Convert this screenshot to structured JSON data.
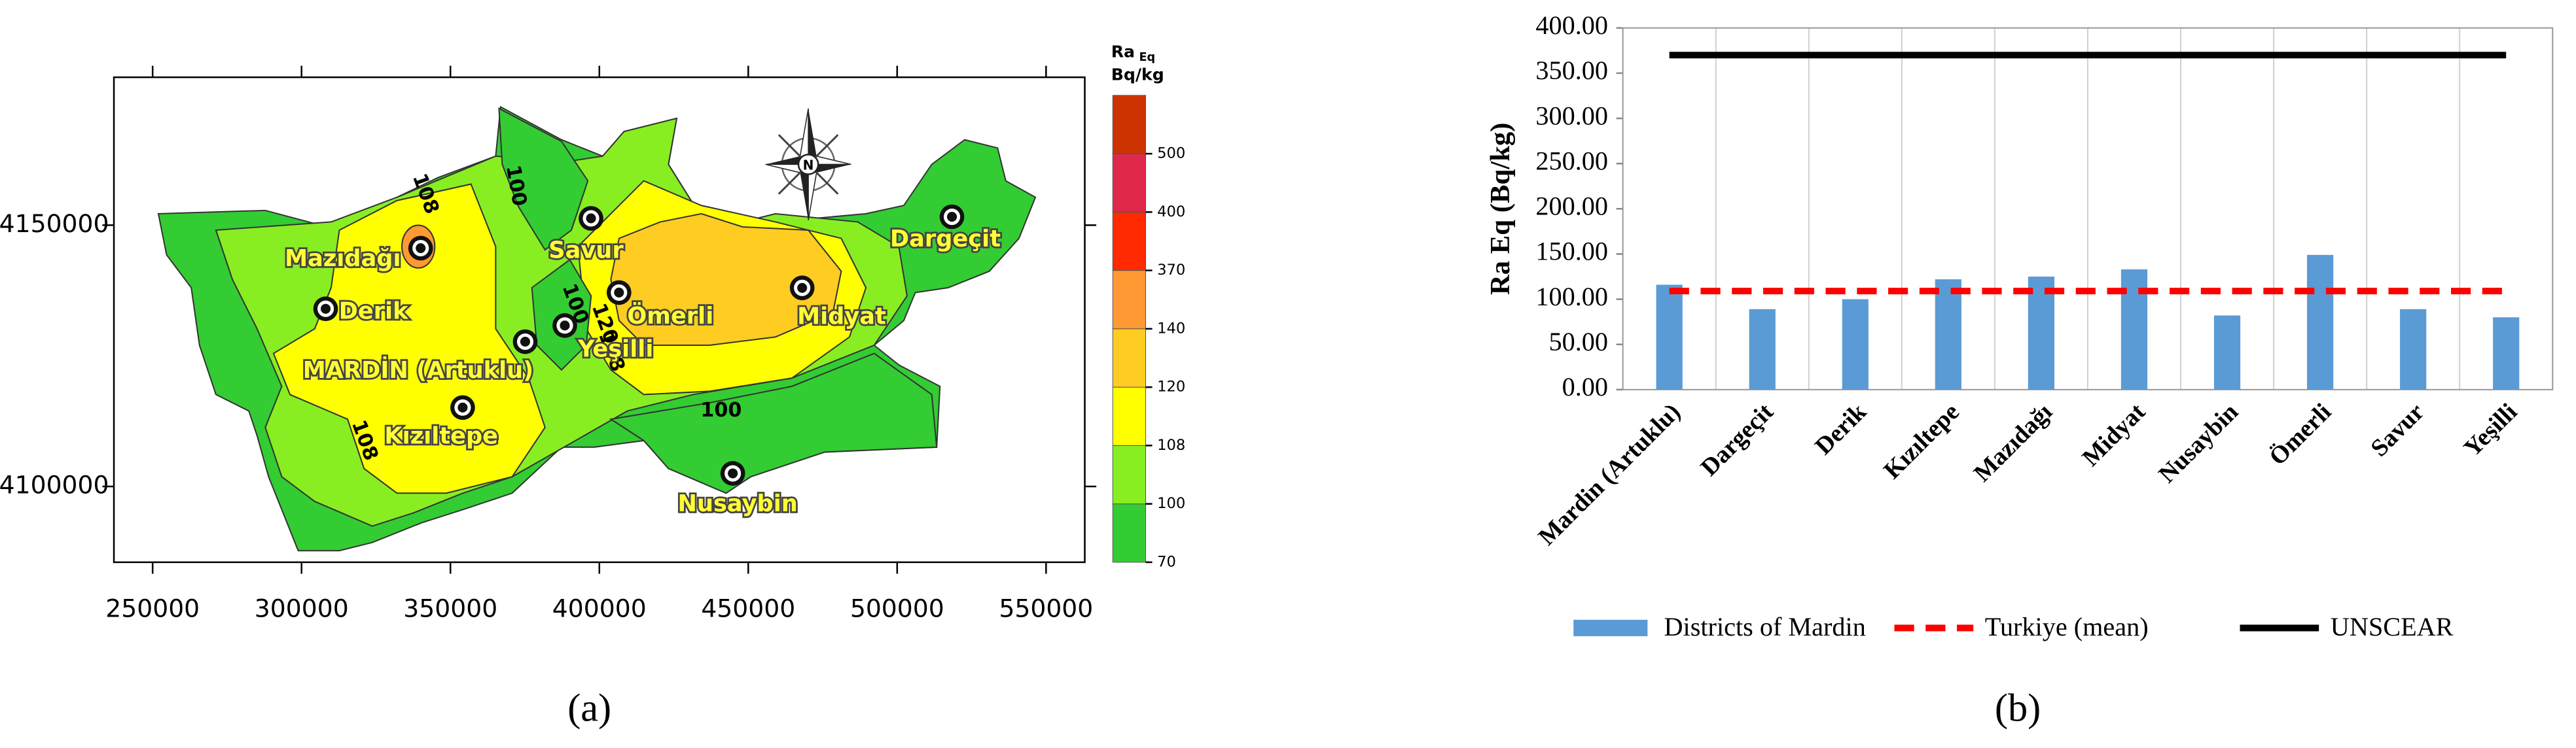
{
  "chart_data": [
    {
      "type": "map",
      "panel_label": "(a)",
      "xlim": [
        237000,
        563000
      ],
      "ylim": [
        4085500,
        4178300
      ],
      "xticks": [
        250000,
        300000,
        350000,
        400000,
        450000,
        500000,
        550000
      ],
      "yticks": [
        4100000,
        4150000
      ],
      "north_label": "N",
      "contour_labels": [
        108,
        100,
        100,
        108,
        100,
        120,
        108
      ],
      "colorbar": {
        "title": "Ra",
        "title_sub": "Eq",
        "unit": "Bq/kg",
        "levels": [
          70,
          100,
          108,
          120,
          140,
          370,
          400,
          500
        ],
        "colors": [
          "#33cc33",
          "#88ee22",
          "#ffff00",
          "#ffcc22",
          "#ff9933",
          "#ff2a00",
          "#e0284a",
          "#cc3300"
        ]
      },
      "points": [
        {
          "name": "Mazıdağı",
          "x": 340000,
          "y": 4145600
        },
        {
          "name": "Derik",
          "x": 308100,
          "y": 4134000
        },
        {
          "name": "MARDİN (Artuklu)",
          "x": 375100,
          "y": 4127700
        },
        {
          "name": "Kızıltepe",
          "x": 354100,
          "y": 4115100
        },
        {
          "name": "Savur",
          "x": 397200,
          "y": 4151300
        },
        {
          "name": "Ömerli",
          "x": 406600,
          "y": 4137100
        },
        {
          "name": "Yeşilli",
          "x": 388400,
          "y": 4130800
        },
        {
          "name": "Midyat",
          "x": 468100,
          "y": 4138000
        },
        {
          "name": "Dargeçit",
          "x": 518400,
          "y": 4151600
        },
        {
          "name": "Nusaybin",
          "x": 444800,
          "y": 4102500
        }
      ]
    },
    {
      "type": "bar",
      "panel_label": "(b)",
      "y_label": "Ra Eq (Bq/kg)",
      "categories": [
        "Mardin (Artuklu)",
        "Dargeçit",
        "Derik",
        "Kızıltepe",
        "Mazıdağı",
        "Midyat",
        "Nusaybin",
        "Ömerli",
        "Savur",
        "Yeşilli"
      ],
      "ylim": [
        0,
        400
      ],
      "yticks": [
        {
          "value": 0,
          "label": "0.00"
        },
        {
          "value": 50,
          "label": "50.00"
        },
        {
          "value": 100,
          "label": "100.00"
        },
        {
          "value": 150,
          "label": "150.00"
        },
        {
          "value": 200,
          "label": "200.00"
        },
        {
          "value": 250,
          "label": "250.00"
        },
        {
          "value": 300,
          "label": "300.00"
        },
        {
          "value": 350,
          "label": "350.00"
        },
        {
          "value": 400,
          "label": "400.00"
        }
      ],
      "grid": true,
      "series": [
        {
          "name": "Districts of Mardin",
          "type": "bar",
          "color": "#5b9bd5",
          "values": [
            116,
            89,
            100,
            122,
            125,
            133,
            82,
            149,
            89,
            80
          ]
        },
        {
          "name": "Turkiye (mean)",
          "type": "line",
          "line_style": "dashed",
          "color": "#ff0000",
          "values": [
            109,
            109,
            109,
            109,
            109,
            109,
            109,
            109,
            109,
            109
          ]
        },
        {
          "name": "UNSCEAR",
          "type": "line",
          "line_style": "solid",
          "color": "#000000",
          "values": [
            370,
            370,
            370,
            370,
            370,
            370,
            370,
            370,
            370,
            370
          ]
        }
      ]
    }
  ]
}
